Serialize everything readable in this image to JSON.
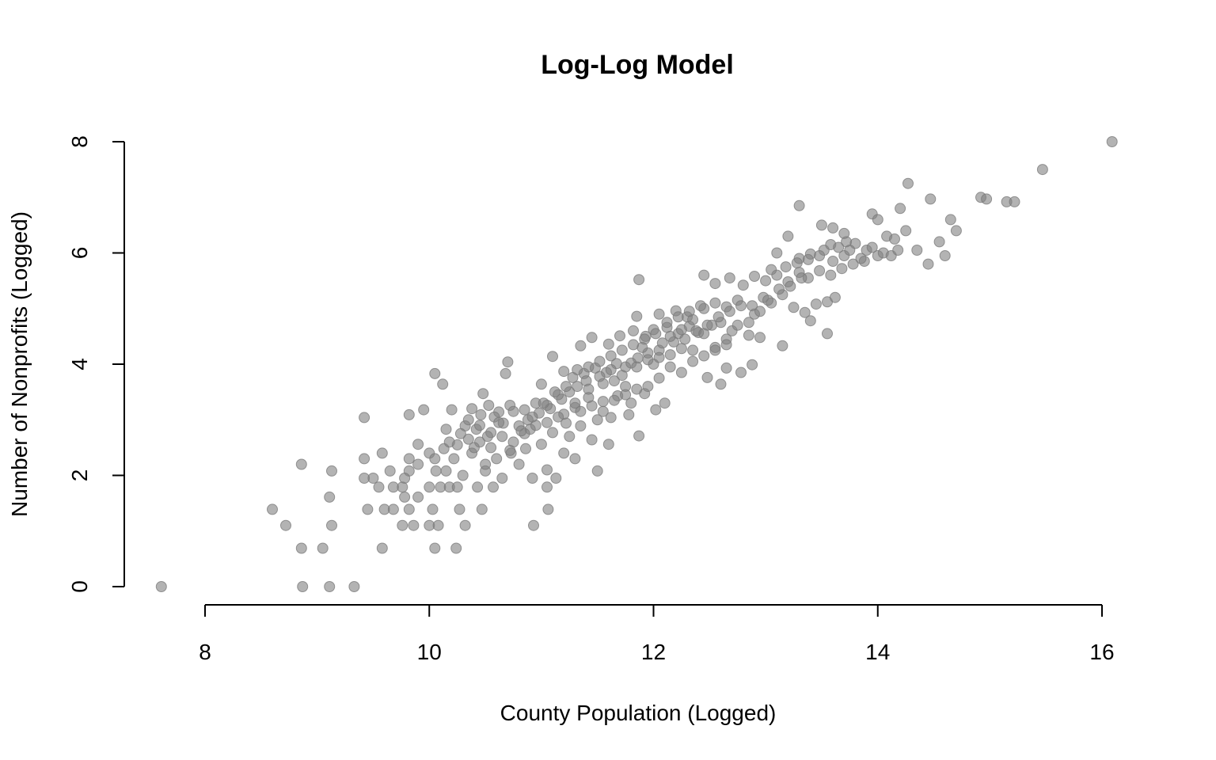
{
  "chart_data": {
    "type": "scatter",
    "title": "Log-Log Model",
    "xlabel": "County Population (Logged)",
    "ylabel": "Number of Nonprofits (Logged)",
    "xlim": [
      7.6,
      16.1
    ],
    "ylim": [
      0,
      8
    ],
    "xticks": [
      8,
      10,
      12,
      14,
      16
    ],
    "yticks": [
      0,
      2,
      4,
      6,
      8
    ],
    "grid": false,
    "point_color": "#808080",
    "points": [
      [
        7.61,
        0.0
      ],
      [
        8.87,
        0.0
      ],
      [
        9.11,
        0.0
      ],
      [
        9.33,
        0.0
      ],
      [
        8.86,
        0.69
      ],
      [
        9.05,
        0.69
      ],
      [
        10.05,
        0.69
      ],
      [
        10.24,
        0.69
      ],
      [
        9.58,
        0.69
      ],
      [
        8.72,
        1.1
      ],
      [
        9.13,
        1.1
      ],
      [
        9.76,
        1.1
      ],
      [
        9.86,
        1.1
      ],
      [
        10.0,
        1.1
      ],
      [
        10.08,
        1.1
      ],
      [
        10.32,
        1.1
      ],
      [
        10.93,
        1.1
      ],
      [
        8.6,
        1.39
      ],
      [
        9.45,
        1.39
      ],
      [
        9.6,
        1.39
      ],
      [
        9.68,
        1.39
      ],
      [
        9.82,
        1.39
      ],
      [
        10.03,
        1.39
      ],
      [
        10.27,
        1.39
      ],
      [
        10.47,
        1.39
      ],
      [
        11.06,
        1.39
      ],
      [
        9.11,
        1.61
      ],
      [
        9.78,
        1.61
      ],
      [
        9.9,
        1.61
      ],
      [
        9.55,
        1.79
      ],
      [
        9.68,
        1.79
      ],
      [
        9.76,
        1.79
      ],
      [
        10.0,
        1.79
      ],
      [
        10.1,
        1.79
      ],
      [
        10.18,
        1.79
      ],
      [
        10.25,
        1.79
      ],
      [
        10.43,
        1.79
      ],
      [
        10.57,
        1.79
      ],
      [
        11.05,
        1.79
      ],
      [
        8.86,
        2.2
      ],
      [
        9.42,
        1.95
      ],
      [
        9.5,
        1.95
      ],
      [
        9.65,
        2.08
      ],
      [
        9.82,
        2.08
      ],
      [
        9.13,
        2.08
      ],
      [
        9.78,
        1.95
      ],
      [
        10.06,
        2.08
      ],
      [
        10.15,
        2.08
      ],
      [
        10.3,
        2.0
      ],
      [
        10.5,
        2.08
      ],
      [
        10.65,
        1.95
      ],
      [
        10.92,
        1.95
      ],
      [
        11.13,
        1.95
      ],
      [
        11.5,
        2.08
      ],
      [
        11.05,
        2.1
      ],
      [
        10.8,
        2.2
      ],
      [
        11.3,
        2.3
      ],
      [
        9.42,
        2.3
      ],
      [
        9.58,
        2.4
      ],
      [
        9.82,
        2.3
      ],
      [
        9.9,
        2.56
      ],
      [
        10.0,
        2.4
      ],
      [
        10.13,
        2.48
      ],
      [
        10.22,
        2.3
      ],
      [
        10.38,
        2.4
      ],
      [
        10.5,
        2.2
      ],
      [
        10.6,
        2.3
      ],
      [
        10.73,
        2.4
      ],
      [
        10.86,
        2.48
      ],
      [
        11.0,
        2.56
      ],
      [
        11.2,
        2.4
      ],
      [
        11.45,
        2.64
      ],
      [
        11.6,
        2.56
      ],
      [
        11.87,
        2.71
      ],
      [
        10.15,
        2.83
      ],
      [
        10.32,
        2.89
      ],
      [
        10.42,
        2.83
      ],
      [
        10.55,
        2.77
      ],
      [
        10.66,
        2.94
      ],
      [
        10.8,
        2.89
      ],
      [
        10.9,
        2.83
      ],
      [
        11.1,
        2.77
      ],
      [
        11.22,
        2.94
      ],
      [
        11.35,
        2.89
      ],
      [
        11.5,
        3.0
      ],
      [
        11.62,
        3.04
      ],
      [
        11.78,
        3.09
      ],
      [
        9.42,
        3.04
      ],
      [
        9.82,
        3.09
      ],
      [
        9.95,
        3.18
      ],
      [
        10.2,
        3.18
      ],
      [
        10.35,
        3.0
      ],
      [
        10.46,
        3.09
      ],
      [
        10.53,
        3.26
      ],
      [
        10.62,
        3.14
      ],
      [
        10.72,
        3.26
      ],
      [
        10.85,
        3.18
      ],
      [
        10.95,
        3.3
      ],
      [
        11.05,
        3.26
      ],
      [
        11.18,
        3.37
      ],
      [
        11.3,
        3.22
      ],
      [
        11.42,
        3.4
      ],
      [
        11.55,
        3.33
      ],
      [
        11.68,
        3.43
      ],
      [
        11.8,
        3.3
      ],
      [
        11.92,
        3.47
      ],
      [
        12.02,
        3.18
      ],
      [
        12.1,
        3.3
      ],
      [
        10.05,
        3.83
      ],
      [
        10.12,
        3.64
      ],
      [
        10.48,
        3.47
      ],
      [
        10.68,
        3.83
      ],
      [
        10.7,
        4.04
      ],
      [
        11.0,
        3.64
      ],
      [
        11.1,
        4.14
      ],
      [
        11.2,
        3.87
      ],
      [
        11.28,
        3.76
      ],
      [
        11.38,
        3.83
      ],
      [
        11.48,
        3.93
      ],
      [
        11.58,
        3.85
      ],
      [
        11.67,
        4.01
      ],
      [
        11.75,
        3.95
      ],
      [
        11.86,
        4.11
      ],
      [
        11.95,
        4.2
      ],
      [
        12.05,
        4.25
      ],
      [
        12.15,
        4.17
      ],
      [
        12.25,
        4.28
      ],
      [
        12.35,
        4.25
      ],
      [
        12.48,
        3.76
      ],
      [
        12.6,
        3.64
      ],
      [
        12.65,
        3.93
      ],
      [
        12.88,
        3.99
      ],
      [
        12.78,
        3.85
      ],
      [
        11.35,
        4.33
      ],
      [
        11.45,
        4.48
      ],
      [
        11.6,
        4.36
      ],
      [
        11.7,
        4.51
      ],
      [
        11.82,
        4.6
      ],
      [
        11.93,
        4.5
      ],
      [
        12.0,
        4.62
      ],
      [
        12.12,
        4.66
      ],
      [
        12.22,
        4.55
      ],
      [
        12.32,
        4.68
      ],
      [
        12.4,
        4.57
      ],
      [
        12.52,
        4.7
      ],
      [
        12.6,
        4.75
      ],
      [
        12.7,
        4.6
      ],
      [
        12.85,
        4.52
      ],
      [
        12.95,
        4.48
      ],
      [
        13.15,
        4.33
      ],
      [
        13.55,
        4.55
      ],
      [
        11.85,
        4.86
      ],
      [
        12.05,
        4.9
      ],
      [
        12.2,
        4.96
      ],
      [
        12.3,
        4.85
      ],
      [
        12.45,
        5.0
      ],
      [
        12.55,
        5.1
      ],
      [
        12.65,
        5.03
      ],
      [
        12.75,
        5.15
      ],
      [
        12.88,
        5.05
      ],
      [
        12.98,
        5.2
      ],
      [
        13.05,
        5.1
      ],
      [
        13.15,
        5.25
      ],
      [
        13.25,
        5.02
      ],
      [
        13.35,
        4.93
      ],
      [
        13.45,
        5.08
      ],
      [
        13.55,
        5.12
      ],
      [
        13.62,
        5.2
      ],
      [
        13.4,
        4.78
      ],
      [
        11.87,
        5.52
      ],
      [
        12.45,
        5.6
      ],
      [
        12.55,
        5.45
      ],
      [
        12.68,
        5.55
      ],
      [
        12.8,
        5.42
      ],
      [
        12.9,
        5.58
      ],
      [
        13.0,
        5.5
      ],
      [
        13.1,
        5.6
      ],
      [
        13.2,
        5.48
      ],
      [
        13.3,
        5.65
      ],
      [
        13.38,
        5.55
      ],
      [
        13.48,
        5.68
      ],
      [
        13.58,
        5.6
      ],
      [
        13.68,
        5.72
      ],
      [
        13.78,
        5.8
      ],
      [
        13.88,
        5.85
      ],
      [
        13.1,
        6.0
      ],
      [
        13.2,
        6.3
      ],
      [
        13.3,
        5.9
      ],
      [
        13.4,
        5.98
      ],
      [
        13.52,
        6.05
      ],
      [
        13.58,
        6.15
      ],
      [
        13.65,
        6.1
      ],
      [
        13.72,
        6.2
      ],
      [
        13.8,
        6.17
      ],
      [
        13.9,
        6.05
      ],
      [
        14.0,
        5.95
      ],
      [
        14.08,
        6.3
      ],
      [
        14.15,
        6.25
      ],
      [
        14.25,
        6.4
      ],
      [
        14.35,
        6.05
      ],
      [
        14.45,
        5.8
      ],
      [
        14.55,
        6.2
      ],
      [
        14.6,
        5.95
      ],
      [
        14.7,
        6.4
      ],
      [
        13.3,
        6.85
      ],
      [
        13.5,
        6.5
      ],
      [
        13.6,
        6.45
      ],
      [
        13.7,
        6.35
      ],
      [
        13.95,
        6.7
      ],
      [
        14.0,
        6.6
      ],
      [
        14.2,
        6.8
      ],
      [
        14.27,
        7.25
      ],
      [
        14.47,
        6.97
      ],
      [
        14.65,
        6.6
      ],
      [
        14.92,
        7.0
      ],
      [
        14.97,
        6.97
      ],
      [
        15.15,
        6.92
      ],
      [
        15.22,
        6.92
      ],
      [
        15.47,
        7.5
      ],
      [
        16.09,
        8.0
      ],
      [
        10.38,
        3.2
      ],
      [
        10.45,
        2.9
      ],
      [
        10.58,
        3.05
      ],
      [
        10.75,
        3.15
      ],
      [
        10.88,
        3.0
      ],
      [
        10.98,
        3.12
      ],
      [
        11.08,
        3.2
      ],
      [
        11.15,
        3.45
      ],
      [
        11.25,
        3.5
      ],
      [
        11.32,
        3.6
      ],
      [
        11.4,
        3.7
      ],
      [
        11.52,
        3.78
      ],
      [
        11.62,
        3.9
      ],
      [
        11.72,
        3.8
      ],
      [
        11.8,
        4.02
      ],
      [
        11.9,
        4.3
      ],
      [
        12.0,
        4.0
      ],
      [
        12.08,
        4.38
      ],
      [
        12.18,
        4.4
      ],
      [
        12.28,
        4.45
      ],
      [
        12.38,
        4.6
      ],
      [
        12.48,
        4.7
      ],
      [
        12.58,
        4.85
      ],
      [
        12.68,
        4.95
      ],
      [
        12.78,
        5.05
      ],
      [
        12.9,
        4.9
      ],
      [
        13.02,
        5.15
      ],
      [
        13.12,
        5.35
      ],
      [
        13.22,
        5.4
      ],
      [
        13.32,
        5.55
      ],
      [
        11.2,
        3.1
      ],
      [
        11.3,
        3.3
      ],
      [
        11.42,
        3.55
      ],
      [
        11.55,
        3.65
      ],
      [
        11.65,
        3.7
      ],
      [
        11.75,
        3.6
      ],
      [
        11.85,
        3.95
      ],
      [
        11.95,
        4.08
      ],
      [
        12.05,
        4.12
      ],
      [
        12.15,
        4.5
      ],
      [
        12.25,
        4.62
      ],
      [
        12.35,
        4.8
      ],
      [
        12.45,
        4.55
      ],
      [
        12.55,
        4.3
      ],
      [
        12.65,
        4.45
      ],
      [
        12.75,
        4.7
      ],
      [
        12.85,
        4.75
      ],
      [
        12.95,
        4.95
      ],
      [
        10.25,
        2.55
      ],
      [
        10.35,
        2.65
      ],
      [
        10.45,
        2.6
      ],
      [
        10.55,
        2.5
      ],
      [
        10.65,
        2.7
      ],
      [
        10.75,
        2.6
      ],
      [
        10.85,
        2.75
      ],
      [
        10.95,
        2.9
      ],
      [
        11.05,
        2.95
      ],
      [
        11.15,
        3.05
      ],
      [
        11.25,
        2.7
      ],
      [
        11.35,
        3.15
      ],
      [
        11.45,
        3.25
      ],
      [
        11.55,
        3.15
      ],
      [
        11.65,
        3.35
      ],
      [
        11.75,
        3.45
      ],
      [
        11.85,
        3.55
      ],
      [
        11.95,
        3.6
      ],
      [
        12.05,
        3.75
      ],
      [
        12.15,
        3.95
      ],
      [
        12.25,
        3.85
      ],
      [
        12.35,
        4.05
      ],
      [
        12.45,
        4.15
      ],
      [
        12.55,
        4.25
      ],
      [
        12.65,
        4.35
      ],
      [
        9.9,
        2.2
      ],
      [
        10.05,
        2.3
      ],
      [
        10.18,
        2.6
      ],
      [
        10.28,
        2.75
      ],
      [
        10.4,
        2.5
      ],
      [
        10.52,
        2.7
      ],
      [
        10.62,
        2.95
      ],
      [
        10.72,
        2.45
      ],
      [
        10.82,
        2.8
      ],
      [
        10.92,
        3.05
      ],
      [
        11.02,
        3.3
      ],
      [
        11.12,
        3.5
      ],
      [
        11.22,
        3.6
      ],
      [
        11.32,
        3.9
      ],
      [
        11.42,
        3.95
      ],
      [
        11.52,
        4.05
      ],
      [
        11.62,
        4.15
      ],
      [
        11.72,
        4.25
      ],
      [
        11.82,
        4.35
      ],
      [
        11.92,
        4.45
      ],
      [
        12.02,
        4.55
      ],
      [
        12.12,
        4.75
      ],
      [
        12.22,
        4.85
      ],
      [
        12.32,
        4.95
      ],
      [
        12.42,
        5.05
      ],
      [
        13.05,
        5.7
      ],
      [
        13.18,
        5.75
      ],
      [
        13.28,
        5.82
      ],
      [
        13.38,
        5.88
      ],
      [
        13.48,
        5.95
      ],
      [
        13.6,
        5.85
      ],
      [
        13.7,
        5.95
      ],
      [
        13.75,
        6.05
      ],
      [
        13.85,
        5.9
      ],
      [
        13.95,
        6.1
      ],
      [
        14.05,
        6.0
      ],
      [
        14.12,
        5.95
      ],
      [
        14.18,
        6.05
      ]
    ]
  }
}
